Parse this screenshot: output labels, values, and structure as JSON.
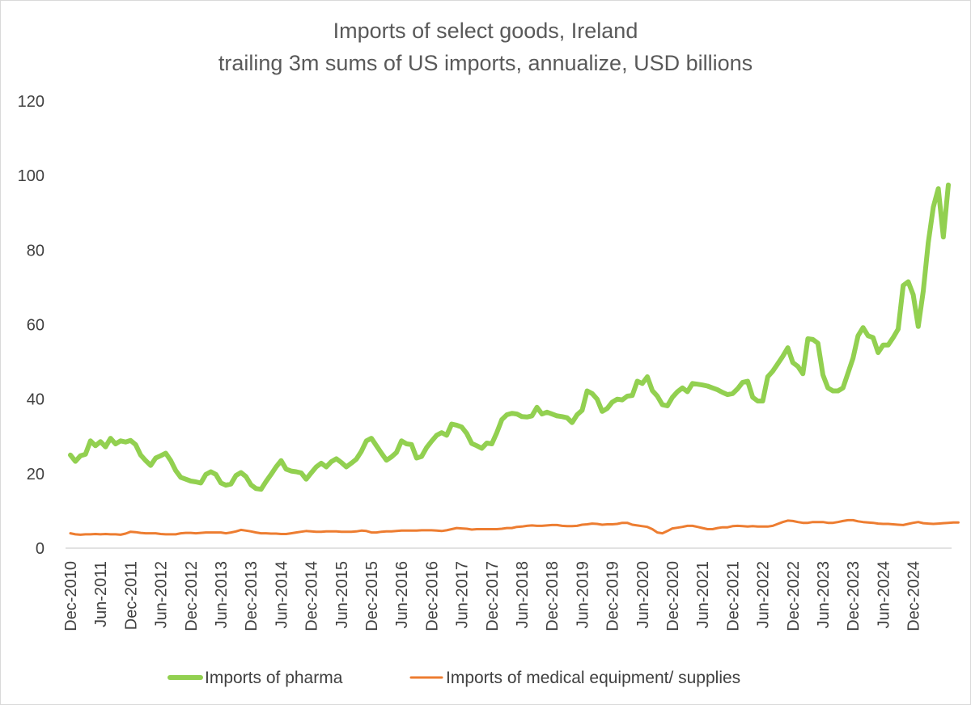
{
  "chart_data": {
    "type": "line",
    "title": "Imports of select goods, Ireland",
    "subtitle": "trailing 3m sums of US imports, annualize, USD billions",
    "xlabel": "",
    "ylabel": "",
    "ylim": [
      0,
      120
    ],
    "yticks": [
      "0",
      "20",
      "40",
      "60",
      "80",
      "100",
      "120"
    ],
    "xtick_labels": [
      "Dec-2010",
      "Jun-2011",
      "Dec-2011",
      "Jun-2012",
      "Dec-2012",
      "Jun-2013",
      "Dec-2013",
      "Jun-2014",
      "Dec-2014",
      "Jun-2015",
      "Dec-2015",
      "Jun-2016",
      "Dec-2016",
      "Jun-2017",
      "Dec-2017",
      "Jun-2018",
      "Dec-2018",
      "Jun-2019",
      "Dec-2019",
      "Jun-2020",
      "Dec-2020",
      "Jun-2021",
      "Dec-2021",
      "Jun-2022",
      "Dec-2022",
      "Jun-2023",
      "Dec-2023",
      "Jun-2024",
      "Dec-2024"
    ],
    "x_start": "Dec-2010",
    "x_frequency": "monthly",
    "grid": false,
    "legend_position": "bottom",
    "series": [
      {
        "name": "Imports of pharma",
        "color": "#92d050",
        "values": [
          25.0,
          23.3,
          24.8,
          25.2,
          28.8,
          27.5,
          28.6,
          27.2,
          29.5,
          28.0,
          28.8,
          28.5,
          28.9,
          27.8,
          25.0,
          23.5,
          22.2,
          24.2,
          24.8,
          25.5,
          23.5,
          20.8,
          19.0,
          18.5,
          18.0,
          17.8,
          17.5,
          19.8,
          20.5,
          19.8,
          17.5,
          16.9,
          17.2,
          19.5,
          20.3,
          19.2,
          17.0,
          16.0,
          15.8,
          17.9,
          19.8,
          21.8,
          23.5,
          21.2,
          20.7,
          20.5,
          20.2,
          18.5,
          20.2,
          21.8,
          22.8,
          21.8,
          23.2,
          24.0,
          23.0,
          21.8,
          22.8,
          23.9,
          26.0,
          28.8,
          29.5,
          27.5,
          25.5,
          23.6,
          24.5,
          25.7,
          28.8,
          28.0,
          27.8,
          24.2,
          24.6,
          27.0,
          28.7,
          30.3,
          31.0,
          30.3,
          33.3,
          33.0,
          32.5,
          30.8,
          28.1,
          27.5,
          26.8,
          28.2,
          28.0,
          31.0,
          34.5,
          35.8,
          36.2,
          36.0,
          35.3,
          35.2,
          35.5,
          37.8,
          36.0,
          36.5,
          36.0,
          35.5,
          35.3,
          35.0,
          33.7,
          35.8,
          37.0,
          42.2,
          41.5,
          40.0,
          36.7,
          37.5,
          39.2,
          40.0,
          39.8,
          40.8,
          41.0,
          44.8,
          44.2,
          46.0,
          42.3,
          40.8,
          38.5,
          38.2,
          40.5,
          42.0,
          43.0,
          42.0,
          44.2,
          44.0,
          43.8,
          43.5,
          43.0,
          42.5,
          41.8,
          41.2,
          41.5,
          42.8,
          44.5,
          44.8,
          40.5,
          39.5,
          39.5,
          46.0,
          47.5,
          49.5,
          51.5,
          53.8,
          49.8,
          48.8,
          46.8,
          56.2,
          56.0,
          55.0,
          46.5,
          43.0,
          42.2,
          42.2,
          43.0,
          47.0,
          51.0,
          57.0,
          59.2,
          57.0,
          56.5,
          52.5,
          54.5,
          54.5,
          56.5,
          58.8,
          70.5,
          71.5,
          68.0,
          59.5,
          69.0,
          82.0,
          91.5,
          96.5,
          83.5,
          97.5
        ]
      },
      {
        "name": "Imports of medical equipment/ supplies",
        "color": "#ed7d31",
        "values": [
          4.0,
          3.7,
          3.6,
          3.7,
          3.7,
          3.8,
          3.7,
          3.8,
          3.7,
          3.7,
          3.6,
          3.9,
          4.4,
          4.3,
          4.1,
          4.0,
          4.0,
          4.0,
          3.8,
          3.7,
          3.7,
          3.7,
          4.0,
          4.1,
          4.1,
          4.0,
          4.1,
          4.2,
          4.2,
          4.2,
          4.2,
          4.0,
          4.2,
          4.5,
          4.9,
          4.7,
          4.5,
          4.2,
          4.0,
          4.0,
          3.9,
          3.9,
          3.8,
          3.8,
          4.0,
          4.2,
          4.4,
          4.6,
          4.5,
          4.4,
          4.4,
          4.5,
          4.5,
          4.5,
          4.4,
          4.4,
          4.4,
          4.5,
          4.7,
          4.6,
          4.2,
          4.2,
          4.4,
          4.5,
          4.5,
          4.6,
          4.7,
          4.7,
          4.7,
          4.7,
          4.8,
          4.8,
          4.8,
          4.7,
          4.6,
          4.8,
          5.1,
          5.4,
          5.3,
          5.2,
          5.0,
          5.1,
          5.1,
          5.1,
          5.1,
          5.1,
          5.2,
          5.4,
          5.4,
          5.7,
          5.8,
          6.0,
          6.1,
          6.0,
          6.0,
          6.1,
          6.2,
          6.2,
          6.0,
          5.9,
          5.9,
          6.0,
          6.3,
          6.4,
          6.6,
          6.5,
          6.3,
          6.4,
          6.4,
          6.5,
          6.8,
          6.8,
          6.3,
          6.1,
          5.9,
          5.7,
          5.1,
          4.2,
          4.0,
          4.6,
          5.3,
          5.5,
          5.7,
          6.0,
          6.0,
          5.7,
          5.4,
          5.1,
          5.1,
          5.4,
          5.6,
          5.6,
          5.9,
          6.0,
          5.9,
          5.8,
          5.9,
          5.8,
          5.8,
          5.8,
          6.0,
          6.5,
          7.0,
          7.4,
          7.3,
          7.0,
          6.8,
          6.8,
          7.0,
          7.0,
          7.0,
          6.8,
          6.8,
          7.0,
          7.3,
          7.5,
          7.5,
          7.2,
          7.0,
          6.9,
          6.8,
          6.6,
          6.5,
          6.5,
          6.4,
          6.3,
          6.2,
          6.5,
          6.8,
          7.0,
          6.7,
          6.6,
          6.5,
          6.6,
          6.7,
          6.8,
          6.9,
          6.9
        ]
      }
    ]
  }
}
